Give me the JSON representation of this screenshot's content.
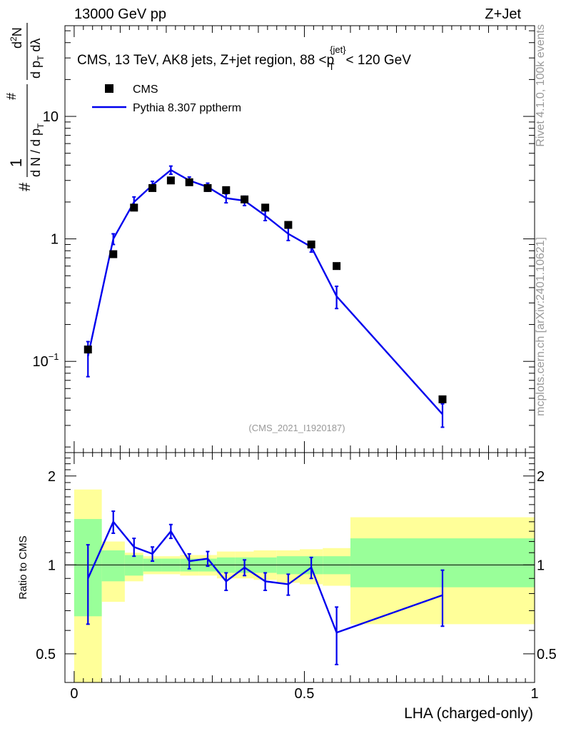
{
  "header": {
    "left": "13000 GeV pp",
    "right": "Z+Jet"
  },
  "side_labels": {
    "rivet": "Rivet 4.1.0,  100k events",
    "mcplots": "mcplots.cern.ch [arXiv:2401.10621]"
  },
  "colors": {
    "cms": "#000000",
    "mc": "#0000ee",
    "band_inner": "#99ff99",
    "band_outer": "#ffff99"
  },
  "chart_data": [
    {
      "type": "scatter",
      "panel": "main",
      "title": "CMS, 13 TeV, AK8 jets, Z+jet region, 88 <p_T^{jet}< 120 GeV",
      "title_parts": {
        "main": "CMS, 13 TeV, AK8 jets, Z+jet region, 88 <p",
        "sup": "{jet}",
        "sub": "T",
        "end": "< 120 GeV"
      },
      "ylabel": "1/(dN/dpT) d²N/(dpT dλ)",
      "ylabel_parts": {
        "hash": "#",
        "one": "1",
        "den": "d N / d p",
        "sub": "T",
        "num": "d",
        "num_sup": "2",
        "num_end": "N",
        "den2": "d p",
        "sub2": "T",
        "dl": " dλ"
      },
      "yscale": "log",
      "ylim": [
        0.018,
        55
      ],
      "xlim": [
        -0.02,
        1.0
      ],
      "yticks": [
        {
          "value": 0.1,
          "label": "10",
          "sup": "−1"
        },
        {
          "value": 1,
          "label": "1",
          "sup": ""
        },
        {
          "value": 10,
          "label": "10",
          "sup": ""
        }
      ],
      "legend_position": "top-left",
      "watermark": "(CMS_2021_I1920187)",
      "series": [
        {
          "name": "CMS",
          "style": "markers",
          "x": [
            0.03,
            0.085,
            0.13,
            0.17,
            0.21,
            0.25,
            0.29,
            0.33,
            0.37,
            0.415,
            0.465,
            0.515,
            0.57,
            0.8
          ],
          "y": [
            0.125,
            0.75,
            1.8,
            2.6,
            3.0,
            2.9,
            2.6,
            2.5,
            2.1,
            1.8,
            1.3,
            0.9,
            0.6,
            0.049
          ]
        },
        {
          "name": "Pythia 8.307 pptherm",
          "style": "line",
          "x": [
            0.03,
            0.085,
            0.13,
            0.17,
            0.21,
            0.25,
            0.29,
            0.33,
            0.37,
            0.415,
            0.465,
            0.515,
            0.57,
            0.8
          ],
          "y": [
            0.11,
            1.0,
            2.0,
            2.75,
            3.65,
            3.0,
            2.65,
            2.15,
            2.05,
            1.55,
            1.1,
            0.86,
            0.34,
            0.037
          ],
          "err_low": [
            0.035,
            0.1,
            0.2,
            0.2,
            0.28,
            0.2,
            0.2,
            0.18,
            0.18,
            0.14,
            0.13,
            0.08,
            0.07,
            0.008
          ],
          "err_high": [
            0.035,
            0.1,
            0.2,
            0.2,
            0.28,
            0.2,
            0.2,
            0.18,
            0.18,
            0.14,
            0.13,
            0.08,
            0.07,
            0.008
          ]
        }
      ]
    },
    {
      "type": "line",
      "panel": "ratio",
      "ylabel": "Ratio to CMS",
      "xlabel": "LHA (charged-only)",
      "yscale": "log",
      "ylim": [
        0.4,
        2.4
      ],
      "xlim": [
        -0.02,
        1.0
      ],
      "yticks": [
        {
          "value": 0.5,
          "label": "0.5"
        },
        {
          "value": 1,
          "label": "1"
        },
        {
          "value": 2,
          "label": "2"
        }
      ],
      "xticks": [
        {
          "value": 0,
          "label": "0"
        },
        {
          "value": 0.5,
          "label": "0.5"
        },
        {
          "value": 1,
          "label": "1"
        }
      ],
      "bins": [
        0.0,
        0.06,
        0.11,
        0.15,
        0.19,
        0.23,
        0.27,
        0.31,
        0.35,
        0.39,
        0.44,
        0.49,
        0.54,
        0.6,
        1.0
      ],
      "band_inner": {
        "low": [
          0.67,
          0.88,
          0.92,
          0.95,
          0.95,
          0.95,
          0.95,
          0.94,
          0.94,
          0.94,
          0.93,
          0.93,
          0.93,
          0.84
        ],
        "high": [
          1.43,
          1.12,
          1.08,
          1.05,
          1.05,
          1.05,
          1.05,
          1.06,
          1.06,
          1.06,
          1.07,
          1.07,
          1.07,
          1.23
        ]
      },
      "band_outer": {
        "low": [
          0.38,
          0.75,
          0.88,
          0.93,
          0.93,
          0.92,
          0.92,
          0.9,
          0.9,
          0.89,
          0.87,
          0.86,
          0.85,
          0.63
        ],
        "high": [
          1.8,
          1.2,
          1.1,
          1.07,
          1.07,
          1.08,
          1.08,
          1.11,
          1.11,
          1.12,
          1.12,
          1.13,
          1.14,
          1.45
        ]
      },
      "series": [
        {
          "name": "Pythia 8.307 pptherm / CMS",
          "x": [
            0.03,
            0.085,
            0.13,
            0.17,
            0.21,
            0.25,
            0.29,
            0.33,
            0.37,
            0.415,
            0.465,
            0.515,
            0.57,
            0.8
          ],
          "y": [
            0.9,
            1.4,
            1.15,
            1.09,
            1.3,
            1.03,
            1.05,
            0.88,
            0.98,
            0.88,
            0.86,
            0.98,
            0.59,
            0.79
          ],
          "err_low": [
            0.27,
            0.12,
            0.08,
            0.06,
            0.07,
            0.06,
            0.06,
            0.06,
            0.06,
            0.06,
            0.07,
            0.08,
            0.13,
            0.17
          ],
          "err_high": [
            0.27,
            0.12,
            0.08,
            0.06,
            0.07,
            0.06,
            0.06,
            0.06,
            0.06,
            0.06,
            0.07,
            0.08,
            0.13,
            0.17
          ]
        }
      ]
    }
  ]
}
